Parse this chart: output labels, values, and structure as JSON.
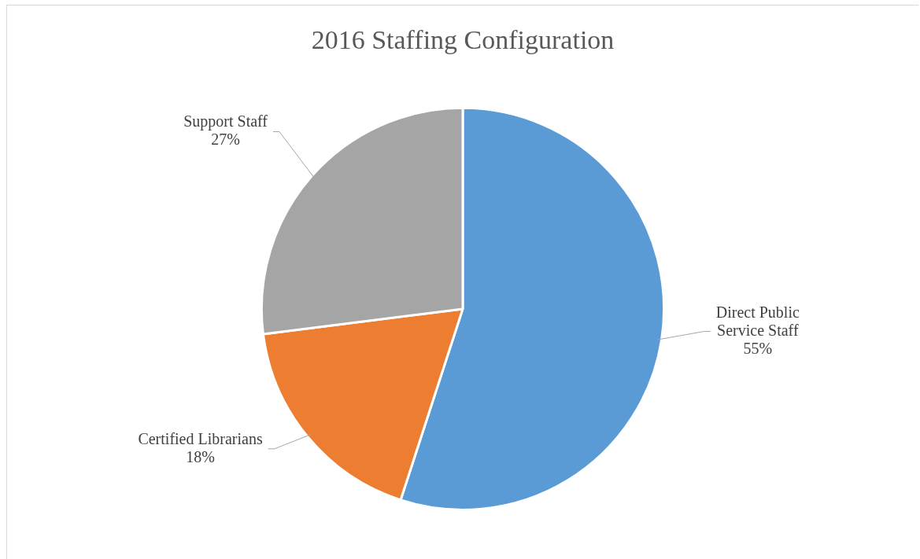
{
  "chart_data": {
    "type": "pie",
    "title": "2016 Staffing Configuration",
    "categories": [
      "Direct Public Service Staff",
      "Certified Librarians",
      "Support Staff"
    ],
    "values": [
      55,
      18,
      27
    ],
    "value_labels": [
      "55%",
      "18%",
      "27%"
    ],
    "colors": [
      "#5b9bd5",
      "#ed7d31",
      "#a5a5a5"
    ],
    "legend": false
  }
}
